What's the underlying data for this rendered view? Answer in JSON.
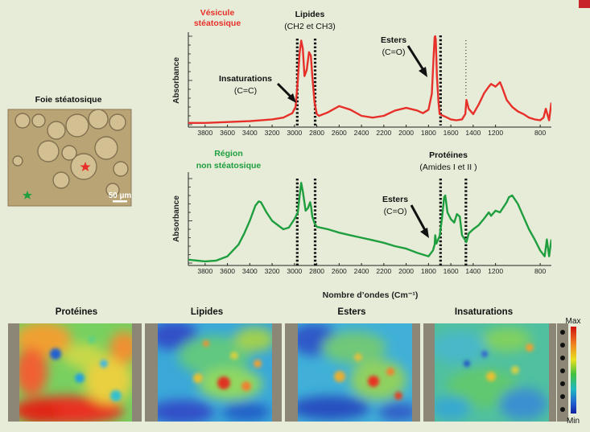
{
  "colors": {
    "background": "#e6ecd8",
    "red_series": "#e8302a",
    "green_series": "#1f9e3f",
    "accent": "#c8252b"
  },
  "micrograph": {
    "title": "Foie stéatosique",
    "scale_bar": "50 µm"
  },
  "top_panel": {
    "title_line1": "Vésicule",
    "title_line2": "stéatosique",
    "ylabel": "Absorbance",
    "ann_lipides": "Lipides",
    "ann_ch": "(CH2 et CH3)",
    "ann_insat": "Insaturations",
    "ann_cc": "(C=C)",
    "ann_esters": "Esters",
    "ann_co": "(C=O)"
  },
  "bottom_panel": {
    "title_line1": "Région",
    "title_line2": "non stéatosique",
    "ylabel": "Absorbance",
    "ann_prot": "Protéines",
    "ann_amides": "(Amides I et II )",
    "ann_esters": "Esters",
    "ann_co": "(C=O)"
  },
  "xlabel": "Nombre d’ondes (Cm⁻¹)",
  "colorbar": {
    "max": "Max",
    "min": "Min"
  },
  "maps": [
    {
      "label": "Protéines"
    },
    {
      "label": "Lipides"
    },
    {
      "label": "Esters"
    },
    {
      "label": "Insaturations"
    }
  ],
  "chart_data": [
    {
      "type": "line",
      "title": "Vésicule stéatosique",
      "xlabel": "",
      "ylabel": "Absorbance",
      "xlim": [
        3950,
        700
      ],
      "x_ticks": [
        3800,
        3600,
        3400,
        3200,
        3000,
        2800,
        2600,
        2400,
        2200,
        2000,
        1800,
        1600,
        1400,
        1200,
        800
      ],
      "series": [
        {
          "color": "#e8302a",
          "x": [
            3950,
            3800,
            3600,
            3400,
            3200,
            3100,
            3020,
            2990,
            2970,
            2955,
            2940,
            2925,
            2910,
            2890,
            2870,
            2853,
            2840,
            2820,
            2800,
            2780,
            2700,
            2600,
            2500,
            2400,
            2300,
            2200,
            2100,
            2000,
            1900,
            1850,
            1800,
            1770,
            1755,
            1745,
            1740,
            1735,
            1725,
            1710,
            1700,
            1650,
            1600,
            1550,
            1500,
            1470,
            1460,
            1440,
            1400,
            1350,
            1300,
            1260,
            1240,
            1200,
            1160,
            1140,
            1100,
            1050,
            1000,
            950,
            900,
            850,
            800,
            770,
            750,
            720,
            700
          ],
          "y": [
            0.02,
            0.02,
            0.03,
            0.04,
            0.06,
            0.08,
            0.13,
            0.2,
            0.5,
            0.8,
            0.95,
            0.86,
            0.55,
            0.62,
            0.82,
            0.78,
            0.55,
            0.25,
            0.12,
            0.1,
            0.14,
            0.21,
            0.17,
            0.1,
            0.08,
            0.1,
            0.16,
            0.19,
            0.16,
            0.13,
            0.17,
            0.35,
            0.75,
            0.99,
            1.0,
            0.96,
            0.55,
            0.25,
            0.12,
            0.09,
            0.06,
            0.05,
            0.06,
            0.12,
            0.28,
            0.18,
            0.12,
            0.23,
            0.36,
            0.43,
            0.46,
            0.43,
            0.48,
            0.42,
            0.28,
            0.2,
            0.15,
            0.12,
            0.08,
            0.06,
            0.05,
            0.08,
            0.18,
            0.05,
            0.25
          ]
        }
      ]
    },
    {
      "type": "line",
      "title": "Région non stéatosique",
      "xlabel": "Nombre d’ondes (Cm⁻¹)",
      "ylabel": "Absorbance",
      "xlim": [
        3950,
        700
      ],
      "x_ticks": [
        3800,
        3600,
        3400,
        3200,
        3000,
        2800,
        2600,
        2400,
        2200,
        2000,
        1800,
        1600,
        1400,
        1200,
        800
      ],
      "series": [
        {
          "color": "#1f9e3f",
          "x": [
            3950,
            3800,
            3700,
            3600,
            3500,
            3450,
            3400,
            3350,
            3320,
            3300,
            3250,
            3200,
            3100,
            3050,
            3000,
            2970,
            2955,
            2940,
            2925,
            2900,
            2880,
            2860,
            2850,
            2840,
            2820,
            2800,
            2700,
            2600,
            2500,
            2400,
            2300,
            2200,
            2100,
            2000,
            1900,
            1800,
            1760,
            1745,
            1740,
            1730,
            1700,
            1680,
            1660,
            1650,
            1630,
            1600,
            1570,
            1545,
            1520,
            1500,
            1460,
            1440,
            1400,
            1350,
            1300,
            1260,
            1240,
            1200,
            1160,
            1100,
            1080,
            1050,
            1000,
            950,
            900,
            850,
            800,
            760,
            740,
            720,
            700
          ],
          "y": [
            0.04,
            0.02,
            0.03,
            0.08,
            0.22,
            0.35,
            0.5,
            0.68,
            0.73,
            0.72,
            0.6,
            0.5,
            0.4,
            0.42,
            0.52,
            0.6,
            0.78,
            0.95,
            0.85,
            0.62,
            0.65,
            0.72,
            0.66,
            0.55,
            0.47,
            0.43,
            0.4,
            0.36,
            0.33,
            0.3,
            0.27,
            0.24,
            0.2,
            0.17,
            0.12,
            0.08,
            0.15,
            0.22,
            0.33,
            0.23,
            0.32,
            0.52,
            0.78,
            0.8,
            0.6,
            0.52,
            0.48,
            0.58,
            0.55,
            0.33,
            0.25,
            0.35,
            0.4,
            0.45,
            0.53,
            0.6,
            0.56,
            0.62,
            0.6,
            0.72,
            0.78,
            0.8,
            0.7,
            0.55,
            0.4,
            0.28,
            0.15,
            0.08,
            0.28,
            0.08,
            0.28
          ]
        }
      ]
    }
  ]
}
